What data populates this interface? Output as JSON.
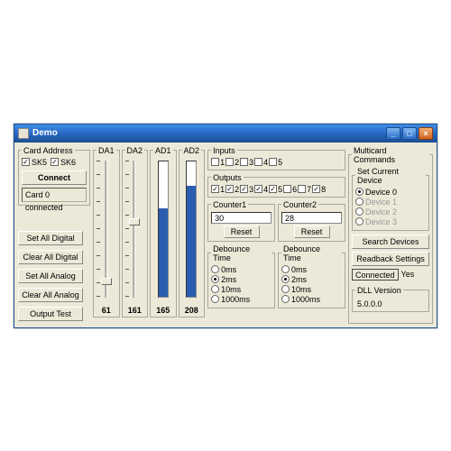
{
  "window": {
    "title": "Demo"
  },
  "cardAddress": {
    "legend": "Card Address",
    "sk5": {
      "label": "SK5",
      "checked": true
    },
    "sk6": {
      "label": "SK6",
      "checked": true
    },
    "connect": "Connect",
    "status": "Card 0 connected"
  },
  "leftButtons": {
    "setAllDigital": "Set All Digital",
    "clearAllDigital": "Clear All Digital",
    "setAllAnalog": "Set All Analog",
    "clearAllAnalog": "Clear All Analog",
    "outputTest": "Output Test"
  },
  "channels": {
    "da1": {
      "legend": "DA1",
      "value": "61",
      "thumbTop": 130,
      "type": "slider"
    },
    "da2": {
      "legend": "DA2",
      "value": "161",
      "thumbTop": 64,
      "type": "slider"
    },
    "ad1": {
      "legend": "AD1",
      "value": "165",
      "fillPct": 65,
      "type": "bar",
      "barColor": "#2a5db0"
    },
    "ad2": {
      "legend": "AD2",
      "value": "208",
      "fillPct": 82,
      "type": "bar",
      "barColor": "#2a5db0"
    }
  },
  "inputs": {
    "legend": "Inputs",
    "labels": [
      "1",
      "2",
      "3",
      "4",
      "5"
    ],
    "checked": [
      false,
      false,
      false,
      false,
      false
    ]
  },
  "outputs": {
    "legend": "Outputs",
    "labels": [
      "1",
      "2",
      "3",
      "4",
      "5",
      "6",
      "7",
      "8"
    ],
    "checked": [
      true,
      true,
      true,
      true,
      true,
      false,
      false,
      true
    ]
  },
  "counter1": {
    "legend": "Counter1",
    "value": "30",
    "reset": "Reset"
  },
  "counter2": {
    "legend": "Counter2",
    "value": "28",
    "reset": "Reset"
  },
  "debounce1": {
    "legend": "Debounce Time",
    "options": [
      "0ms",
      "2ms",
      "10ms",
      "1000ms"
    ],
    "selected": 1
  },
  "debounce2": {
    "legend": "Debounce Time",
    "options": [
      "0ms",
      "2ms",
      "10ms",
      "1000ms"
    ],
    "selected": 1
  },
  "multicard": {
    "legend": "Multicard Commands",
    "setCurrent": {
      "legend": "Set Current Device",
      "options": [
        "Device 0",
        "Device 1",
        "Device 2",
        "Device 3"
      ],
      "selected": 0,
      "disabled": [
        false,
        true,
        true,
        true
      ]
    },
    "searchDevices": "Search Devices",
    "readback": "Readback Settings",
    "connectedLabel": "Connected",
    "connectedValue": "Yes",
    "dllVersion": {
      "legend": "DLL Version",
      "value": "5.0.0.0"
    }
  },
  "colors": {
    "barFill": "#2a5db0",
    "panel": "#ece9d8",
    "titleGradTop": "#3f8ee6",
    "titleGradBot": "#1b4e91"
  }
}
